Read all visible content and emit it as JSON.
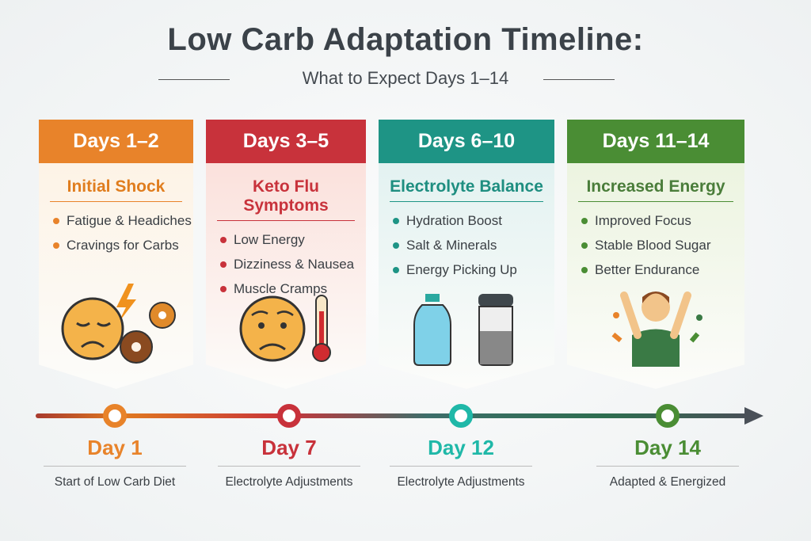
{
  "title": "Low Carb Adaptation Timeline:",
  "subtitle": "What to Expect Days 1–14",
  "phases": [
    {
      "header": "Days 1–2",
      "title": "Initial Shock",
      "items": [
        "Fatigue & Headiches",
        "Cravings for Carbs"
      ],
      "color": "#e8832a",
      "title_color": "#e07d1e",
      "bg": "#fdf3e6",
      "icon": "tired-face-donuts-icon"
    },
    {
      "header": "Days 3–5",
      "title": "Keto Flu Symptoms",
      "items": [
        "Low Energy",
        "Dizziness & Nausea",
        "Muscle Cramps"
      ],
      "color": "#c8323b",
      "title_color": "#c8323b",
      "bg": "#fbe1dc",
      "icon": "sick-face-thermometer-icon"
    },
    {
      "header": "Days 6–10",
      "title": "Electrolyte Balance",
      "items": [
        "Hydration Boost",
        "Salt & Minerals",
        "Energy Picking Up"
      ],
      "color": "#1e9485",
      "title_color": "#1e8e80",
      "bg": "#e3f2f1",
      "icon": "water-bottle-salt-shaker-icon"
    },
    {
      "header": "Days 11–14",
      "title": "Increased Energy",
      "items": [
        "Improved Focus",
        "Stable Blood Sugar",
        "Better Endurance"
      ],
      "color": "#4a8d34",
      "title_color": "#4a7d3a",
      "bg": "#ecf4e0",
      "icon": "celebrating-person-icon"
    }
  ],
  "milestones": [
    {
      "day": "Day 1",
      "caption": "Start of Low Carb Diet",
      "color": "#e8832a"
    },
    {
      "day": "Day 7",
      "caption": "Electrolyte Adjustments",
      "color": "#c8323b"
    },
    {
      "day": "Day 12",
      "caption": "Electrolyte Adjustments",
      "color": "#1fb8a8"
    },
    {
      "day": "Day 14",
      "caption": "Adapted & Energized",
      "color": "#4a8d34"
    }
  ]
}
